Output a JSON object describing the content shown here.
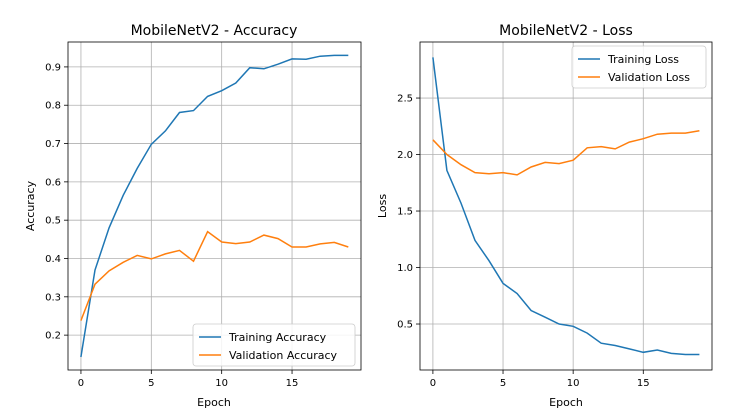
{
  "chart_data": [
    {
      "type": "line",
      "title": "MobileNetV2 - Accuracy",
      "xlabel": "Epoch",
      "ylabel": "Accuracy",
      "xlim": [
        -0.92,
        19.9
      ],
      "ylim": [
        0.109,
        0.965
      ],
      "xticks": [
        0,
        5,
        10,
        15
      ],
      "yticks": [
        0.2,
        0.3,
        0.4,
        0.5,
        0.6,
        0.7,
        0.8,
        0.9
      ],
      "ytick_labels": [
        "0.2",
        "0.3",
        "0.4",
        "0.5",
        "0.6",
        "0.7",
        "0.8",
        "0.9"
      ],
      "grid": true,
      "legend_position": "lower-right",
      "x": [
        0,
        1,
        2,
        3,
        4,
        5,
        6,
        7,
        8,
        9,
        10,
        11,
        12,
        13,
        14,
        15,
        16,
        17,
        18,
        19
      ],
      "series": [
        {
          "name": "Training Accuracy",
          "color": "#1f77b4",
          "values": [
            0.143,
            0.37,
            0.48,
            0.565,
            0.635,
            0.698,
            0.733,
            0.781,
            0.786,
            0.823,
            0.838,
            0.858,
            0.898,
            0.895,
            0.907,
            0.921,
            0.92,
            0.928,
            0.93,
            0.93
          ]
        },
        {
          "name": "Validation Accuracy",
          "color": "#ff7f0e",
          "values": [
            0.238,
            0.333,
            0.368,
            0.39,
            0.408,
            0.399,
            0.412,
            0.421,
            0.393,
            0.47,
            0.443,
            0.439,
            0.443,
            0.461,
            0.452,
            0.43,
            0.43,
            0.438,
            0.442,
            0.43
          ]
        }
      ]
    },
    {
      "type": "line",
      "title": "MobileNetV2 - Loss",
      "xlabel": "Epoch",
      "ylabel": "Loss",
      "xlim": [
        -0.92,
        19.9
      ],
      "ylim": [
        0.093,
        2.996
      ],
      "xticks": [
        0,
        5,
        10,
        15
      ],
      "yticks": [
        0.5,
        1.0,
        1.5,
        2.0,
        2.5
      ],
      "ytick_labels": [
        "0.5",
        "1.0",
        "1.5",
        "2.0",
        "2.5"
      ],
      "grid": true,
      "legend_position": "upper-right",
      "x": [
        0,
        1,
        2,
        3,
        4,
        5,
        6,
        7,
        8,
        9,
        10,
        11,
        12,
        13,
        14,
        15,
        16,
        17,
        18,
        19
      ],
      "series": [
        {
          "name": "Training Loss",
          "color": "#1f77b4",
          "values": [
            2.86,
            1.86,
            1.57,
            1.24,
            1.06,
            0.86,
            0.77,
            0.62,
            0.56,
            0.5,
            0.48,
            0.42,
            0.33,
            0.31,
            0.28,
            0.25,
            0.27,
            0.24,
            0.23,
            0.23
          ]
        },
        {
          "name": "Validation Loss",
          "color": "#ff7f0e",
          "values": [
            2.13,
            2.0,
            1.91,
            1.84,
            1.83,
            1.84,
            1.82,
            1.89,
            1.93,
            1.92,
            1.95,
            2.06,
            2.07,
            2.05,
            2.11,
            2.14,
            2.18,
            2.19,
            2.19,
            2.21
          ]
        }
      ]
    }
  ]
}
